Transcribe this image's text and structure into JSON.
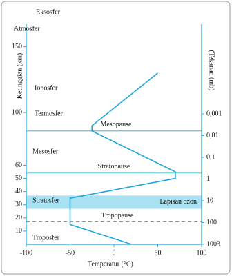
{
  "chart_data": {
    "type": "line",
    "ylabel": "Ketinggian (km)",
    "y2label": "(Tekanan (mb)",
    "xlabel": "Temperatur (°C)",
    "x": [
      20,
      -50,
      -50,
      70,
      70,
      -25,
      -25,
      50
    ],
    "values": [
      0,
      15,
      35,
      50,
      55,
      86,
      90,
      130
    ],
    "color": "#1fa8d8",
    "xlim": [
      -100,
      100
    ],
    "xticks": [
      -100,
      -50,
      0,
      50,
      100
    ],
    "ylim": [
      0,
      165
    ],
    "yticks": [
      10,
      20,
      30,
      40,
      50,
      60,
      100,
      150
    ],
    "y2lim": [
      1003,
      1e-07
    ],
    "y2log": true,
    "y2ticks": [
      {
        "value": 0.001,
        "label": "0,001"
      },
      {
        "value": 0.01,
        "label": "0,01"
      },
      {
        "value": 0.1,
        "label": "0,1"
      },
      1,
      10,
      100,
      1003
    ],
    "zone_labels": [
      "Eksosfer",
      "Atmosfer",
      "Ionosfer",
      "Termosfer",
      "Mesosfer",
      "Stratosfer",
      "Troposfer"
    ],
    "layers": [
      {
        "label": "Mesopause",
        "altitude": 86,
        "dashed": false
      },
      {
        "label": "Stratopause",
        "altitude": 54,
        "dashed": false
      },
      {
        "label": "Tropopause",
        "altitude": 17,
        "dashed": true
      }
    ],
    "ozone_layer": {
      "label": "Lapisan ozon",
      "range": [
        27,
        37
      ],
      "color": "#a8e2f2"
    }
  }
}
